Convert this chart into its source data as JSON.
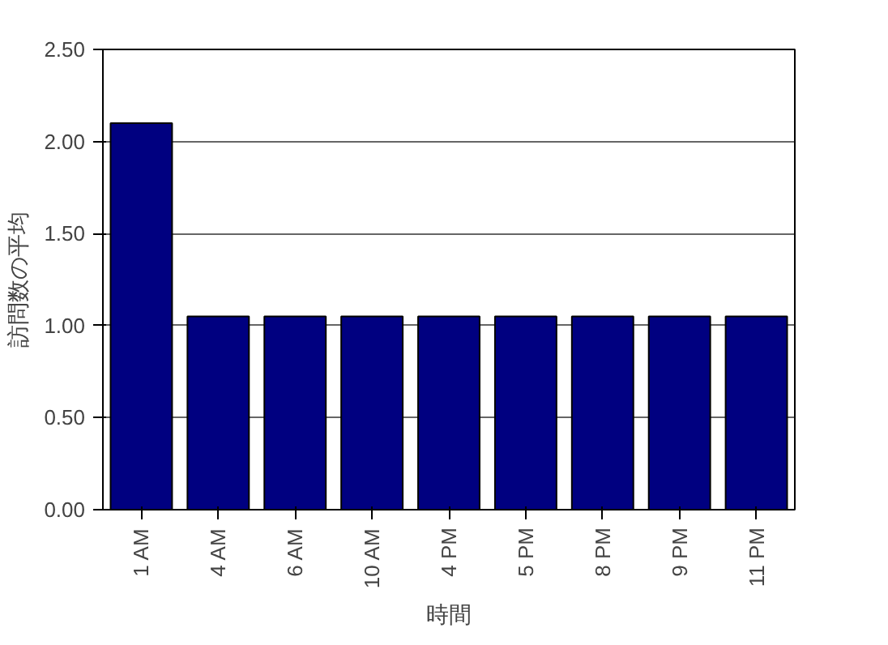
{
  "chart_data": {
    "type": "bar",
    "xlabel": "時間",
    "ylabel": "訪問数の平均",
    "categories": [
      "1 AM",
      "4 AM",
      "6 AM",
      "10 AM",
      "4 PM",
      "5 PM",
      "8 PM",
      "9 PM",
      "11 PM"
    ],
    "values": [
      2.1,
      1.05,
      1.05,
      1.05,
      1.05,
      1.05,
      1.05,
      1.05,
      1.05
    ],
    "color": "#000080",
    "ylim": [
      0,
      2.5
    ],
    "yticks": [
      {
        "value": 0,
        "label": "0.00"
      },
      {
        "value": 0.5,
        "label": "0.50"
      },
      {
        "value": 1,
        "label": "1.00"
      },
      {
        "value": 1.5,
        "label": "1.50"
      },
      {
        "value": 2,
        "label": "2.00"
      },
      {
        "value": 2.5,
        "label": "2.50"
      }
    ],
    "grid": "y"
  }
}
